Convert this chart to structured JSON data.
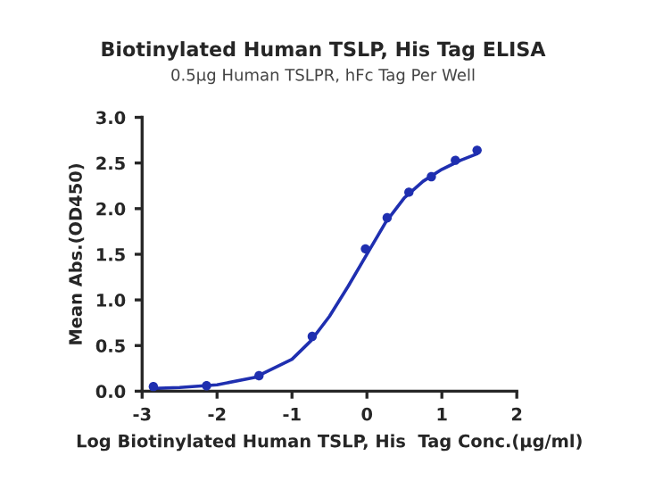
{
  "chart_data": {
    "type": "scatter",
    "title": "Biotinylated Human TSLP, His Tag ELISA",
    "subtitle": "0.5μg Human TSLPR, hFc Tag Per Well",
    "xlabel": "Log Biotinylated Human TSLP, His  Tag Conc.(μg/ml)",
    "ylabel": "Mean Abs.(OD450)",
    "series": [
      {
        "color": "#1f2fb0",
        "marker": "circle",
        "x": [
          -2.85,
          -2.14,
          -1.44,
          -0.73,
          -0.02,
          0.27,
          0.56,
          0.86,
          1.18,
          1.47
        ],
        "values": [
          0.05,
          0.06,
          0.17,
          0.6,
          1.56,
          1.9,
          2.18,
          2.35,
          2.53,
          2.64
        ]
      },
      {
        "type": "line",
        "color": "#1f2fb0",
        "line_style": "solid",
        "x": [
          -2.85,
          -2.5,
          -2.0,
          -1.5,
          -1.0,
          -0.75,
          -0.5,
          -0.25,
          0.0,
          0.25,
          0.5,
          0.75,
          1.0,
          1.25,
          1.47
        ],
        "values": [
          0.03,
          0.04,
          0.07,
          0.15,
          0.35,
          0.55,
          0.82,
          1.15,
          1.5,
          1.85,
          2.12,
          2.3,
          2.43,
          2.53,
          2.6
        ]
      }
    ],
    "xlim": [
      -3,
      2
    ],
    "xticks": [
      -3,
      -2,
      -1,
      0,
      1,
      2
    ],
    "ylim": [
      0,
      3
    ],
    "yticks": [
      {
        "value": 0,
        "label": "0.0"
      },
      {
        "value": 0.5,
        "label": "0.5"
      },
      {
        "value": 1,
        "label": "1.0"
      },
      {
        "value": 1.5,
        "label": "1.5"
      },
      {
        "value": 2,
        "label": "2.0"
      },
      {
        "value": 2.5,
        "label": "2.5"
      },
      {
        "value": 3,
        "label": "3.0"
      }
    ],
    "grid": false,
    "legend": false
  }
}
